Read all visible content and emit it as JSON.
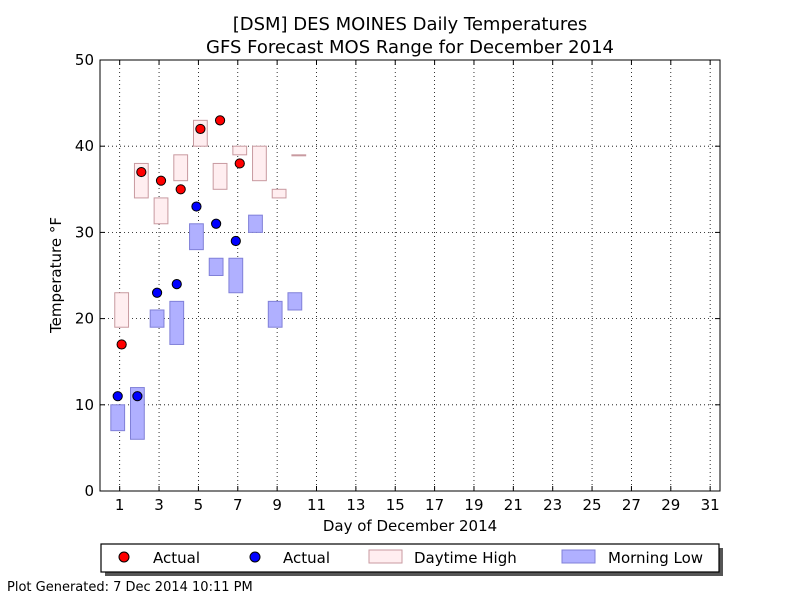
{
  "chart_data": {
    "type": "scatter",
    "title": "[DSM] DES MOINES Daily Temperatures",
    "subtitle": "GFS Forecast MOS Range for December 2014",
    "xlabel": "Day of December 2014",
    "ylabel": "Temperature °F",
    "xlim": [
      0,
      31.5
    ],
    "ylim": [
      0,
      50
    ],
    "xticks": [
      "1",
      "3",
      "5",
      "7",
      "9",
      "11",
      "13",
      "15",
      "17",
      "19",
      "21",
      "23",
      "25",
      "27",
      "29",
      "31"
    ],
    "yticks": [
      "0",
      "10",
      "20",
      "30",
      "40",
      "50"
    ],
    "grid": true,
    "legend_position": "bottom",
    "series": [
      {
        "name": "Actual",
        "kind": "points",
        "color": "#ff0000",
        "points": [
          [
            1.1,
            17
          ],
          [
            2.1,
            37
          ],
          [
            3.1,
            36
          ],
          [
            4.1,
            35
          ],
          [
            5.1,
            42
          ],
          [
            6.1,
            43
          ],
          [
            7.1,
            38
          ]
        ]
      },
      {
        "name": "Actual",
        "kind": "points",
        "color": "#0000ff",
        "points": [
          [
            0.9,
            11
          ],
          [
            1.9,
            11
          ],
          [
            2.9,
            23
          ],
          [
            3.9,
            24
          ],
          [
            4.9,
            33
          ],
          [
            5.9,
            31
          ],
          [
            6.9,
            29
          ]
        ]
      },
      {
        "name": "Daytime High",
        "kind": "ranges",
        "color": "#ffeef0",
        "edge": "#c89aa0",
        "ranges": [
          [
            1.1,
            19,
            23
          ],
          [
            2.1,
            34,
            38
          ],
          [
            3.1,
            31,
            34
          ],
          [
            4.1,
            36,
            39
          ],
          [
            5.1,
            40,
            43
          ],
          [
            6.1,
            35,
            38
          ],
          [
            7.1,
            39,
            40
          ],
          [
            8.1,
            36,
            40
          ],
          [
            9.1,
            34,
            35
          ],
          [
            10.1,
            39,
            39
          ]
        ]
      },
      {
        "name": "Morning Low",
        "kind": "ranges",
        "color": "#b0b0ff",
        "edge": "#8080d8",
        "ranges": [
          [
            0.9,
            7,
            10
          ],
          [
            1.9,
            6,
            12
          ],
          [
            2.9,
            19,
            21
          ],
          [
            3.9,
            17,
            22
          ],
          [
            4.9,
            28,
            31
          ],
          [
            5.9,
            25,
            27
          ],
          [
            6.9,
            23,
            27
          ],
          [
            7.9,
            30,
            32
          ],
          [
            8.9,
            19,
            22
          ],
          [
            9.9,
            21,
            23
          ]
        ]
      }
    ]
  },
  "footer": {
    "generated": "Plot Generated: 7 Dec 2014 10:11 PM"
  }
}
